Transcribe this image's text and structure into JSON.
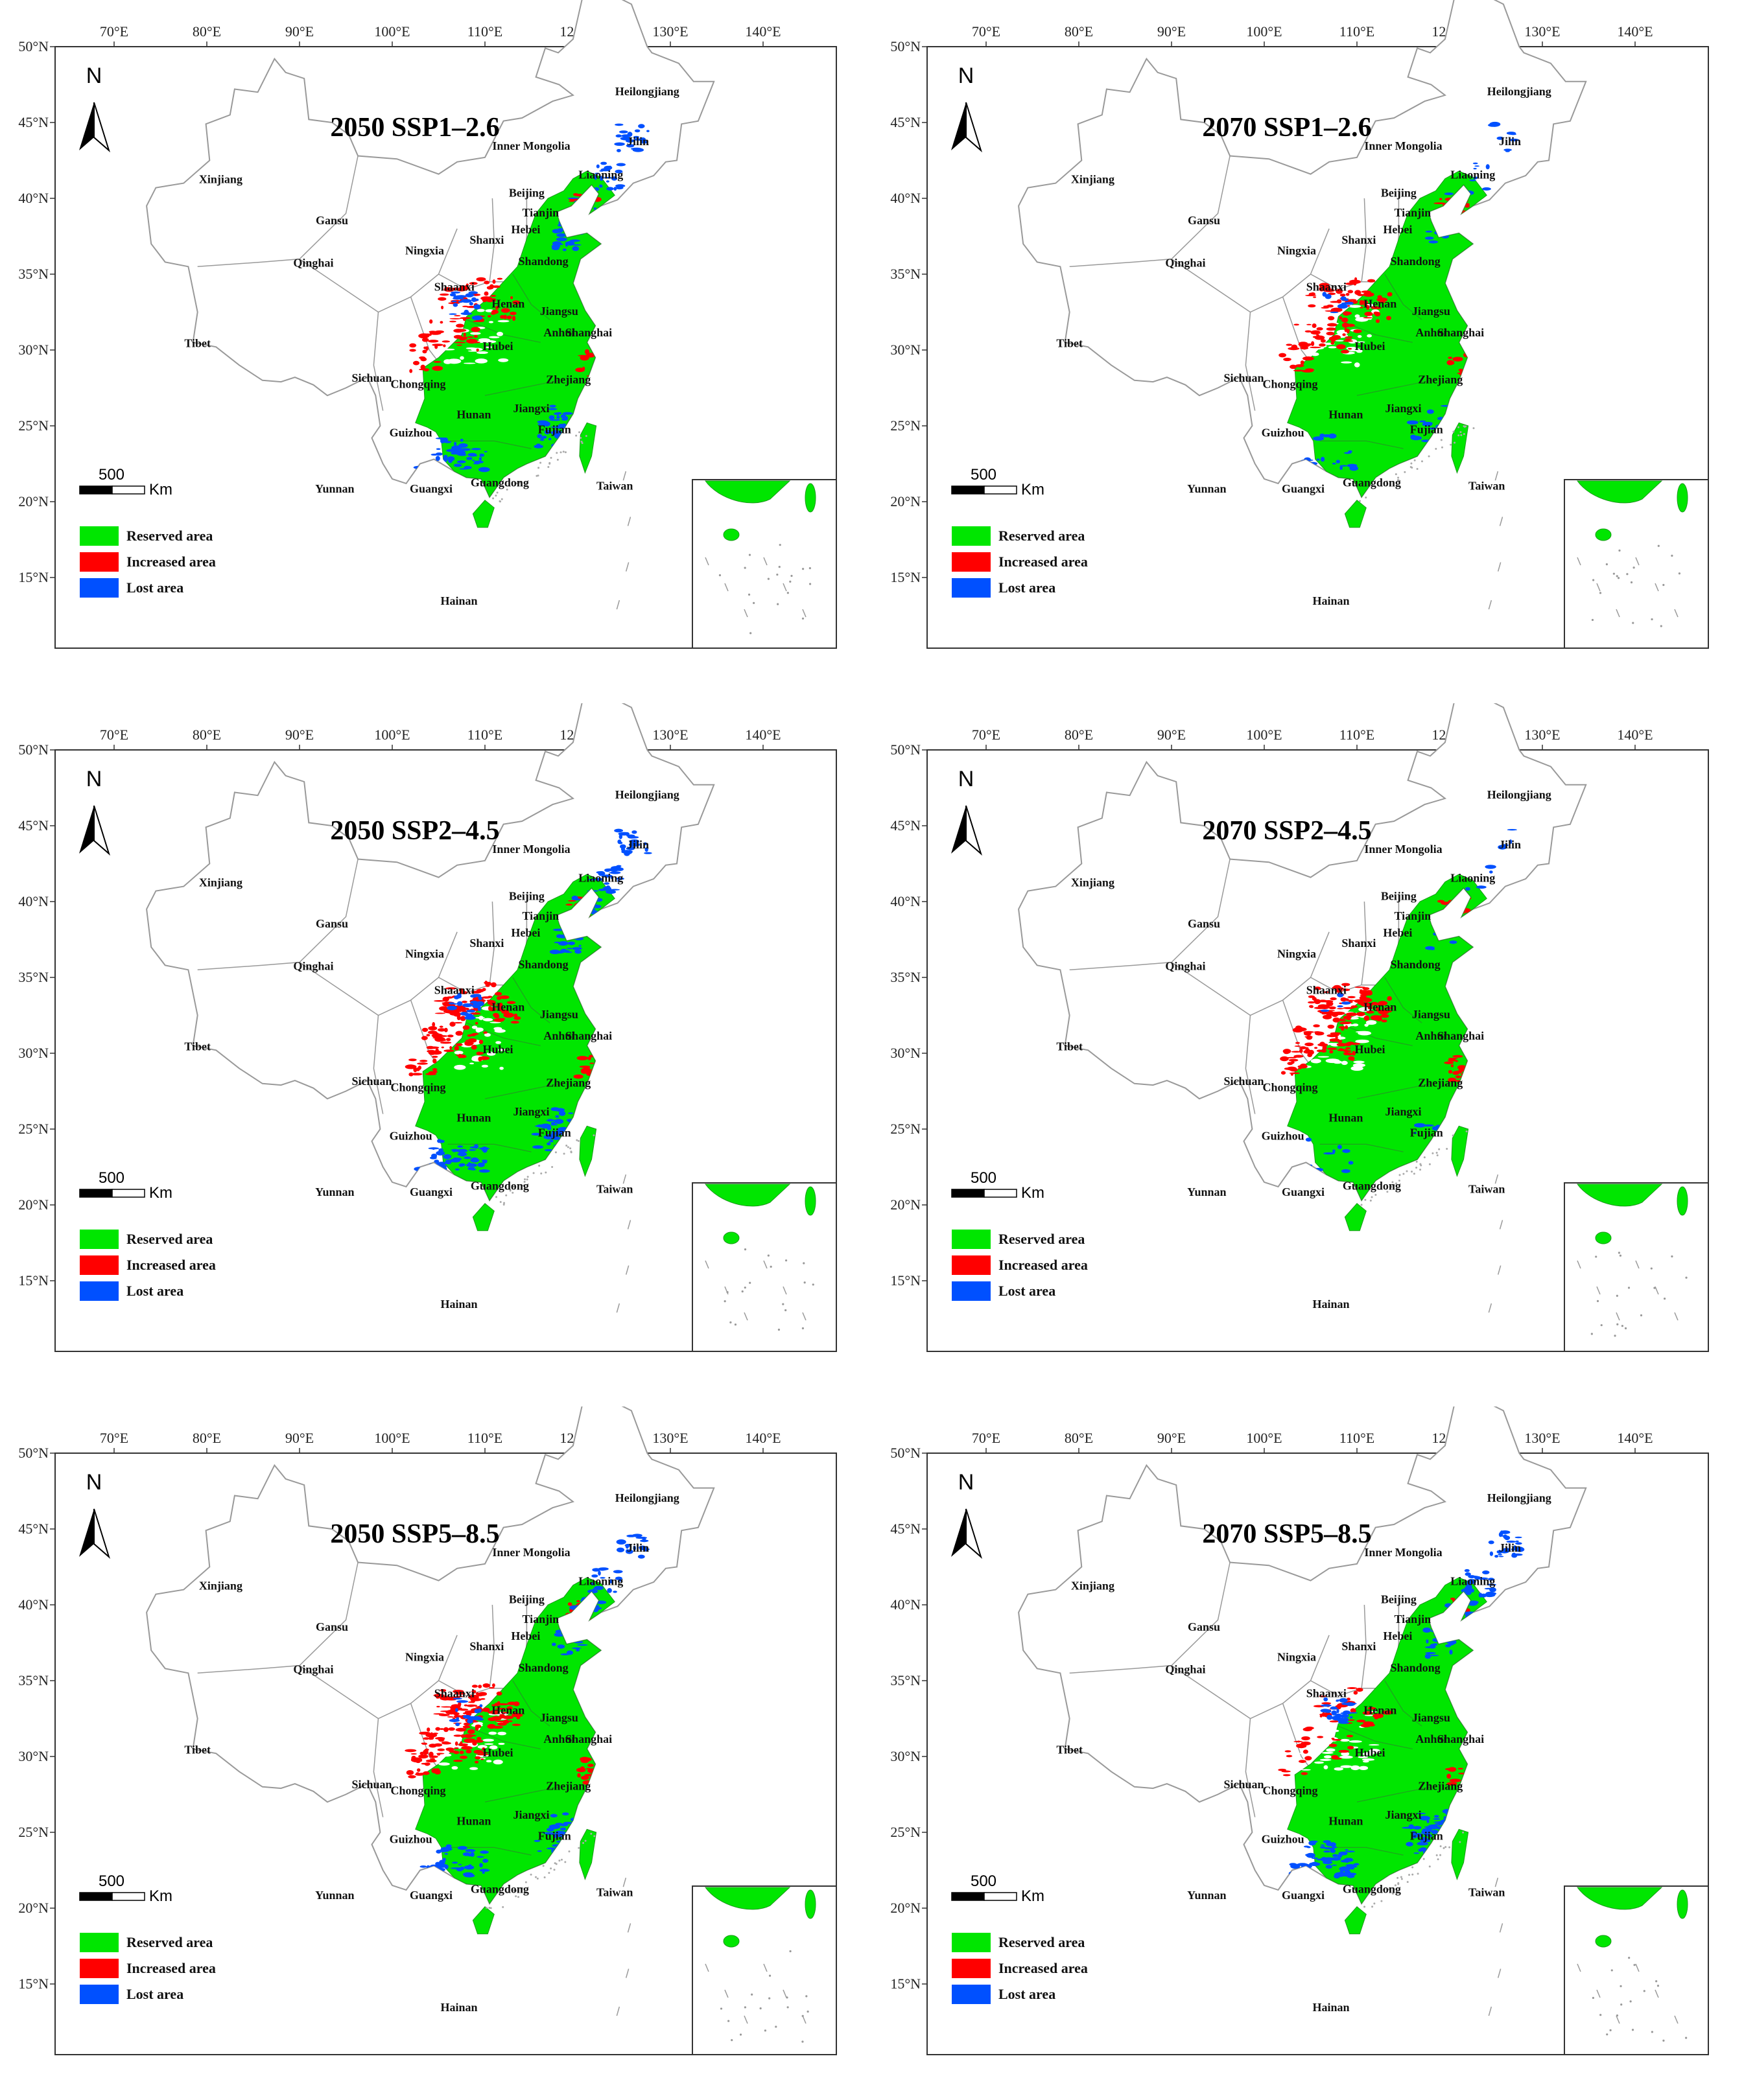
{
  "colors": {
    "reserved": "#00E600",
    "increased": "#FF0000",
    "lost": "#0050FF",
    "border": "#999999",
    "frame": "#333333"
  },
  "ticks": {
    "lon": [
      "70°E",
      "80°E",
      "90°E",
      "100°E",
      "110°E",
      "120°E",
      "130°E",
      "140°E"
    ],
    "lat": [
      "50°N",
      "45°N",
      "40°N",
      "35°N",
      "30°N",
      "25°N",
      "20°N",
      "15°N"
    ]
  },
  "north": "N",
  "scale": {
    "value": "500",
    "unit": "Km"
  },
  "legend": [
    {
      "key": "reserved",
      "label": "Reserved area"
    },
    {
      "key": "increased",
      "label": "Increased area"
    },
    {
      "key": "lost",
      "label": "Lost area"
    }
  ],
  "provinces": [
    "Heilongjiang",
    "Jilin",
    "Liaoning",
    "Inner Mongolia",
    "Xinjiang",
    "Gansu",
    "Beijing",
    "Tianjin",
    "Hebei",
    "Shanxi",
    "Ningxia",
    "Qinghai",
    "Shandong",
    "Shaanxi",
    "Henan",
    "Jiangsu",
    "Anhui",
    "Shanghai",
    "Tibet",
    "Sichuan",
    "Chongqing",
    "Hubei",
    "Zhejiang",
    "Hunan",
    "Jiangxi",
    "Guizhou",
    "Fujian",
    "Taiwan",
    "Yunnan",
    "Guangxi",
    "Guangdong",
    "Hainan"
  ],
  "panels": [
    {
      "title": "2050 SSP1–2.6",
      "increased": 0.55,
      "lost": 0.8
    },
    {
      "title": "2070 SSP1–2.6",
      "increased": 0.6,
      "lost": 0.3
    },
    {
      "title": "2050 SSP2–4.5",
      "increased": 0.85,
      "lost": 0.9
    },
    {
      "title": "2070 SSP2–4.5",
      "increased": 0.9,
      "lost": 0.15
    },
    {
      "title": "2050 SSP5–8.5",
      "increased": 1.0,
      "lost": 0.6
    },
    {
      "title": "2070 SSP5–8.5",
      "increased": 0.35,
      "lost": 1.0
    }
  ]
}
